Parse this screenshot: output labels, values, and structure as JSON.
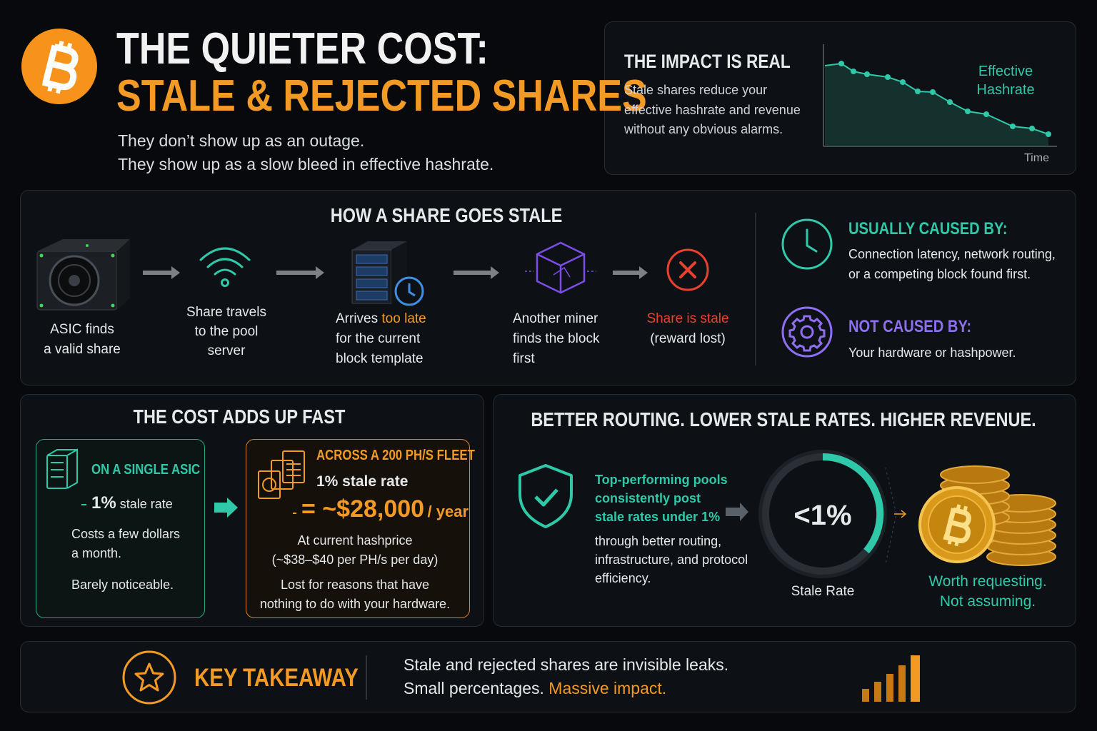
{
  "header": {
    "title_line1": "THE QUIETER COST:",
    "title_line2": "STALE & REJECTED SHARES",
    "subtitle": [
      "They don’t show up as an outage.",
      "They show up as a slow bleed in effective hashrate."
    ]
  },
  "impact": {
    "title": "THE IMPACT IS REAL",
    "text": [
      "Stale shares reduce your",
      "effective hashrate and revenue",
      "without any obvious alarms."
    ],
    "chart_label": [
      "Effective",
      "Hashrate"
    ],
    "axis_label": "Time"
  },
  "how": {
    "title": "HOW A SHARE GOES STALE",
    "steps": [
      {
        "lines": [
          "ASIC finds",
          "a valid share"
        ]
      },
      {
        "lines": [
          "Share travels",
          "to the pool",
          "server"
        ]
      },
      {
        "lead": "Arrives",
        "highlight": "too late",
        "lines": [
          "for the current",
          "block template"
        ]
      },
      {
        "lines": [
          "Another miner",
          "finds the block",
          "first"
        ]
      },
      {
        "highlight": "Share is stale",
        "lines": [
          "(reward lost)"
        ]
      }
    ],
    "caused_by": {
      "title": "USUALLY CAUSED BY:",
      "lines": [
        "Connection latency, network routing,",
        "or a competing block found first."
      ]
    },
    "not_caused_by": {
      "title": "NOT CAUSED BY:",
      "lines": [
        "Your hardware or hashpower."
      ]
    }
  },
  "cost": {
    "title": "THE COST ADDS UP FAST",
    "single": {
      "title": "ON A SINGLE ASIC",
      "rate": "1%",
      "rate_text": "stale rate",
      "lines": [
        "Costs a few dollars",
        "a month."
      ],
      "note": "Barely noticeable."
    },
    "fleet": {
      "title": "ACROSS A 200 PH/S FLEET",
      "rate": "1% stale rate",
      "amount": "= ~$28,000",
      "period": "/ year",
      "lines": [
        "At current hashprice",
        "(~$38–$40 per PH/s per day)"
      ],
      "note": [
        "Lost for reasons that have",
        "nothing to do with your hardware."
      ]
    }
  },
  "routing": {
    "title": "BETTER ROUTING. LOWER STALE RATES. HIGHER REVENUE.",
    "highlight": [
      "Top-performing pools",
      "consistently post",
      "stale rates under 1%"
    ],
    "lines": [
      "through better routing,",
      "infrastructure, and protocol",
      "efficiency."
    ],
    "gauge_value": "<1%",
    "gauge_label": "Stale Rate",
    "closing": [
      "Worth requesting.",
      "Not assuming."
    ]
  },
  "takeaway": {
    "title": "KEY TAKEAWAY",
    "lines": [
      "Stale and rejected shares are invisible leaks."
    ],
    "lead": "Small percentages.",
    "highlight": "Massive impact."
  }
}
